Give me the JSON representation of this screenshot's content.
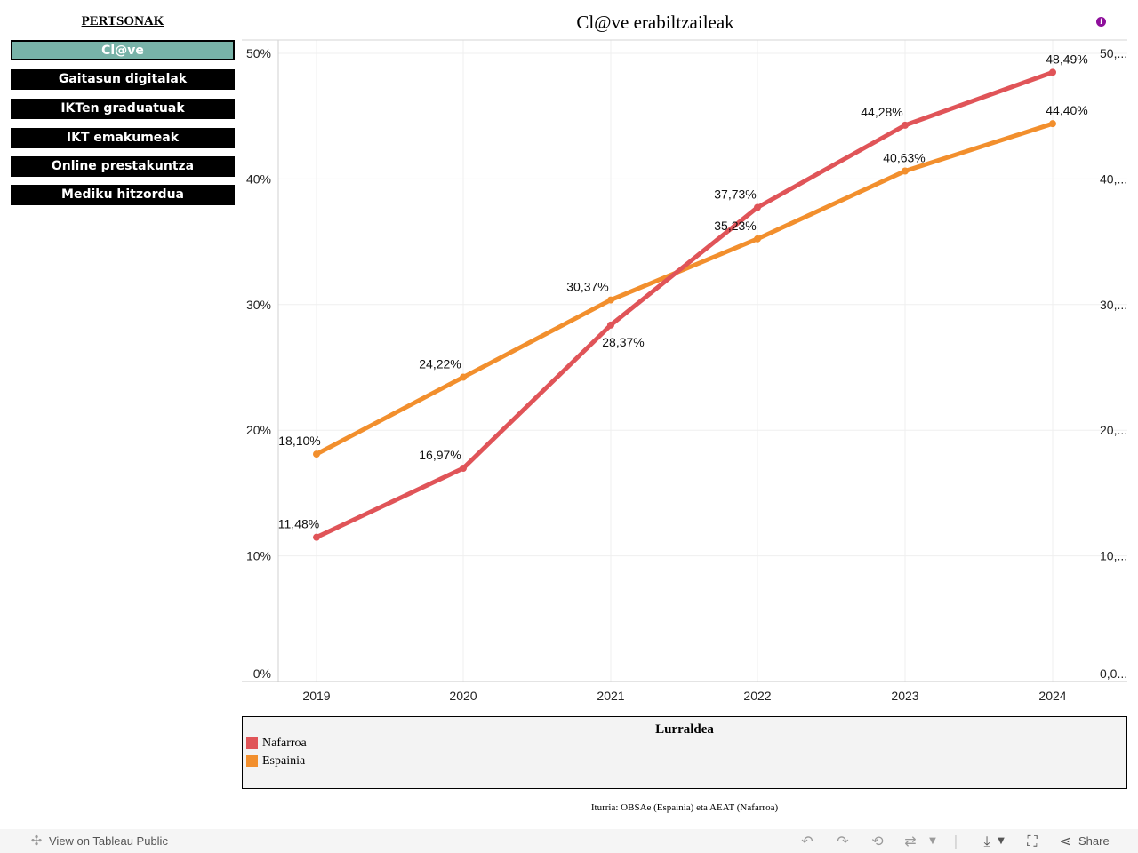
{
  "sidebar": {
    "title": "PERTSONAK",
    "items": [
      {
        "label": "Cl@ve",
        "active": true
      },
      {
        "label": "Gaitasun digitalak",
        "active": false
      },
      {
        "label": "IKTen graduatuak",
        "active": false
      },
      {
        "label": "IKT emakumeak",
        "active": false
      },
      {
        "label": "Online prestakuntza",
        "active": false
      },
      {
        "label": "Mediku hitzordua",
        "active": false
      }
    ]
  },
  "info_icon": "info-icon",
  "chart_data": {
    "type": "line",
    "title": "Cl@ve erabiltzaileak",
    "categories": [
      "2019",
      "2020",
      "2021",
      "2022",
      "2023",
      "2024"
    ],
    "series": [
      {
        "name": "Nafarroa",
        "color": "#e05458",
        "values": [
          11.48,
          16.97,
          28.37,
          37.73,
          44.28,
          48.49
        ],
        "labels": [
          "11,48%",
          "16,97%",
          "28,37%",
          "37,73%",
          "44,28%",
          "48,49%"
        ]
      },
      {
        "name": "Espainia",
        "color": "#f28f2d",
        "values": [
          18.1,
          24.22,
          30.37,
          35.23,
          40.63,
          44.4
        ],
        "labels": [
          "18,10%",
          "24,22%",
          "30,37%",
          "35,23%",
          "40,63%",
          "44,40%"
        ]
      }
    ],
    "ylim": [
      0,
      50
    ],
    "y_ticks": [
      0,
      10,
      20,
      30,
      40,
      50
    ],
    "y_tick_labels_left": [
      "0%",
      "10%",
      "20%",
      "30%",
      "40%",
      "50%"
    ],
    "y_tick_labels_right": [
      "0,0...",
      "10,...",
      "20,...",
      "30,...",
      "40,...",
      "50,..."
    ],
    "grid": true,
    "legend": {
      "title": "Lurraldea",
      "position": "bottom"
    }
  },
  "source": "Iturria: OBSAe (Espainia) eta AEAT (Nafarroa)",
  "toolbar": {
    "view_label": "View on Tableau Public",
    "share_label": "Share",
    "icons": [
      "tableau-logo-icon",
      "undo-icon",
      "redo-icon",
      "revert-icon",
      "refresh-icon",
      "download-icon",
      "fullscreen-icon",
      "share-icon"
    ]
  }
}
